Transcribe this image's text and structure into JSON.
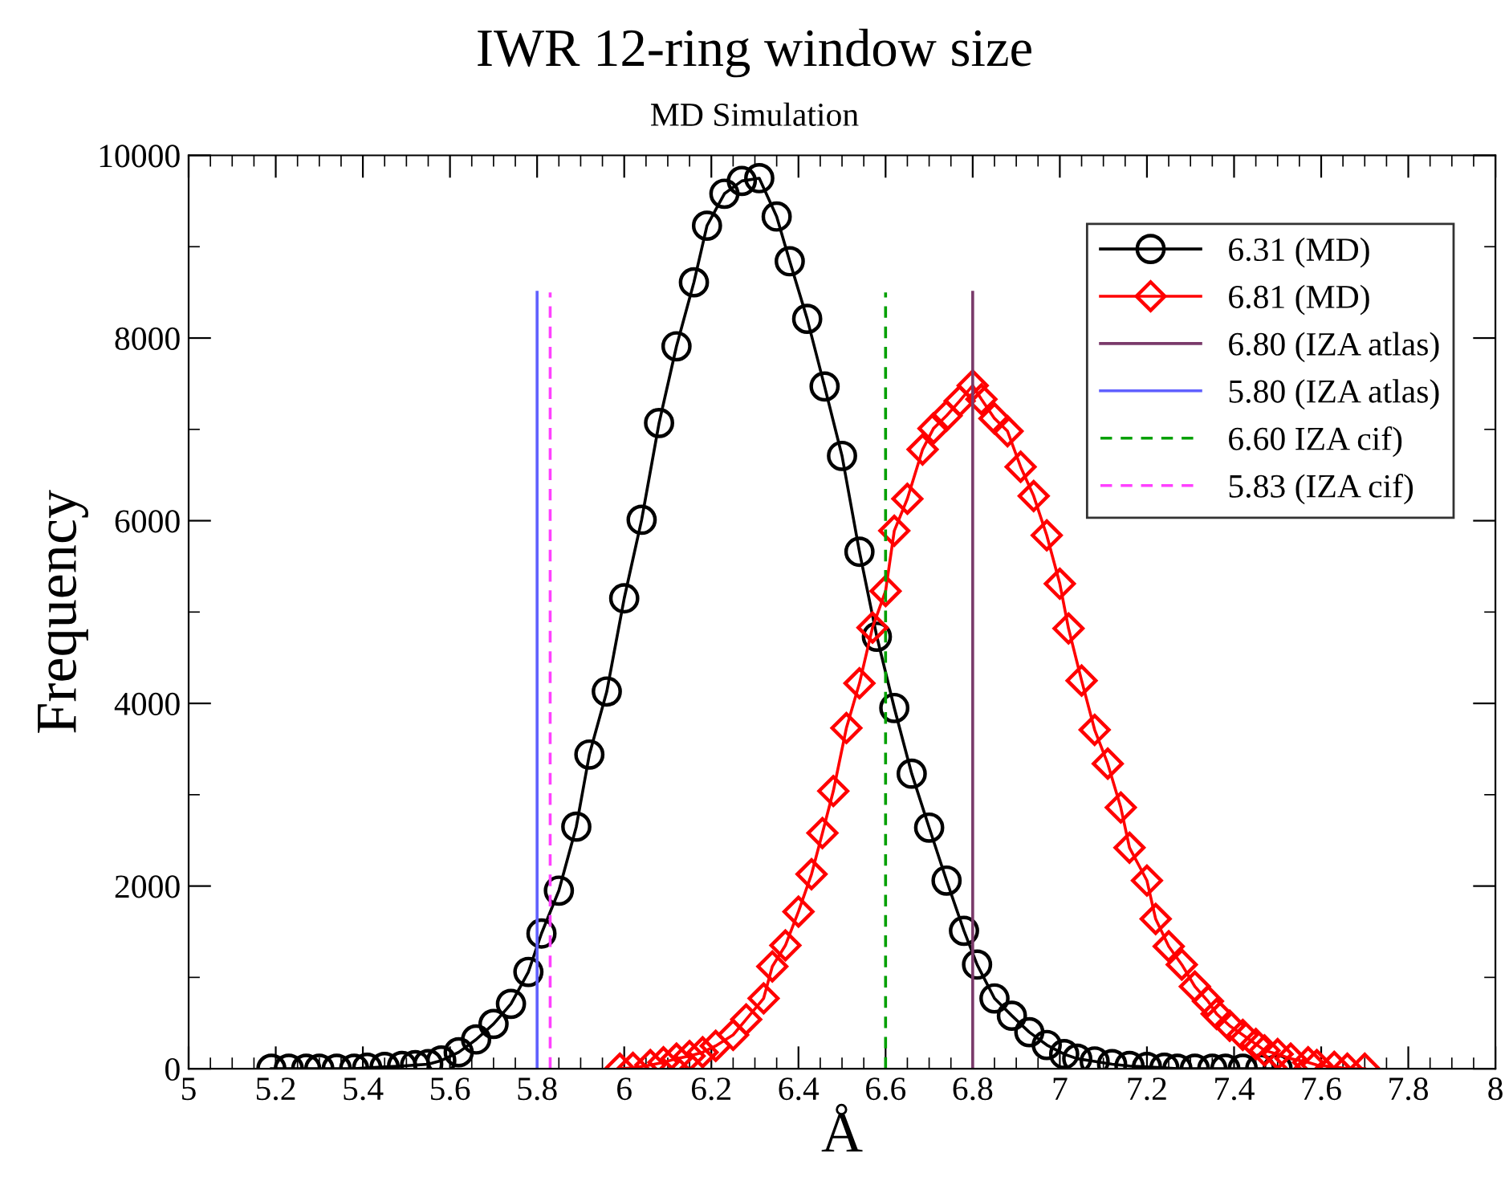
{
  "chart_data": {
    "type": "line",
    "title": "IWR 12-ring window size",
    "subtitle": "MD Simulation",
    "xlabel": "Å",
    "ylabel": "Frequency",
    "xlim": [
      5,
      8
    ],
    "xticks": [
      5,
      5.2,
      5.4,
      5.6,
      5.8,
      6,
      6.2,
      6.4,
      6.6,
      6.8,
      7,
      7.2,
      7.4,
      7.6,
      7.8,
      8
    ],
    "ylim": [
      0,
      10000
    ],
    "yticks": [
      0,
      2000,
      4000,
      6000,
      8000,
      10000
    ],
    "grid": false,
    "legend": "top right",
    "series": [
      {
        "name": "6.31 (MD)",
        "color": "#000000",
        "marker": "circle",
        "line_style": "solid",
        "x": [
          5.19,
          5.23,
          5.27,
          5.3,
          5.34,
          5.38,
          5.41,
          5.45,
          5.49,
          5.52,
          5.55,
          5.58,
          5.62,
          5.66,
          5.7,
          5.74,
          5.78,
          5.81,
          5.85,
          5.89,
          5.92,
          5.96,
          6.0,
          6.04,
          6.08,
          6.12,
          6.16,
          6.19,
          6.23,
          6.27,
          6.31,
          6.35,
          6.38,
          6.42,
          6.46,
          6.5,
          6.54,
          6.58,
          6.62,
          6.66,
          6.7,
          6.74,
          6.78,
          6.81,
          6.85,
          6.89,
          6.93,
          6.97,
          7.01,
          7.04,
          7.08,
          7.12,
          7.16,
          7.2,
          7.24,
          7.27,
          7.31,
          7.35,
          7.38,
          7.42,
          7.46,
          7.5
        ],
        "values": [
          0,
          0,
          0,
          0,
          0,
          0,
          10,
          20,
          30,
          40,
          50,
          90,
          180,
          320,
          490,
          710,
          1060,
          1480,
          1950,
          2650,
          3440,
          4130,
          5150,
          6010,
          7070,
          7910,
          8610,
          9230,
          9580,
          9720,
          9750,
          9330,
          8840,
          8210,
          7470,
          6710,
          5660,
          4730,
          3950,
          3230,
          2640,
          2060,
          1510,
          1140,
          770,
          580,
          400,
          260,
          160,
          110,
          80,
          50,
          30,
          20,
          10,
          0,
          0,
          0,
          0,
          0,
          0,
          0
        ]
      },
      {
        "name": "6.81 (MD)",
        "color": "#ff0000",
        "marker": "diamond",
        "line_style": "solid",
        "x": [
          5.99,
          6.02,
          6.06,
          6.09,
          6.12,
          6.15,
          6.18,
          6.21,
          6.25,
          6.28,
          6.32,
          6.34,
          6.37,
          6.4,
          6.43,
          6.455,
          6.48,
          6.51,
          6.54,
          6.57,
          6.6,
          6.62,
          6.65,
          6.685,
          6.71,
          6.74,
          6.77,
          6.8,
          6.82,
          6.85,
          6.88,
          6.91,
          6.94,
          6.97,
          7.0,
          7.02,
          7.05,
          7.08,
          7.11,
          7.14,
          7.16,
          7.2,
          7.22,
          7.25,
          7.28,
          7.31,
          7.34,
          7.36,
          7.39,
          7.42,
          7.45,
          7.47,
          7.5,
          7.53,
          7.57,
          7.59,
          7.63,
          7.66,
          7.7
        ],
        "values": [
          0,
          10,
          40,
          70,
          110,
          140,
          180,
          250,
          370,
          540,
          770,
          1120,
          1350,
          1720,
          2130,
          2580,
          3040,
          3730,
          4220,
          4830,
          5230,
          5890,
          6240,
          6780,
          7010,
          7150,
          7310,
          7480,
          7330,
          7120,
          6980,
          6590,
          6270,
          5840,
          5310,
          4820,
          4250,
          3710,
          3340,
          2860,
          2420,
          2060,
          1640,
          1340,
          1140,
          900,
          740,
          600,
          470,
          370,
          270,
          200,
          160,
          110,
          70,
          40,
          20,
          0,
          0
        ]
      },
      {
        "name": "6.80 (IZA atlas)",
        "color": "#7a3a6a",
        "marker": "none",
        "line_style": "solid",
        "x": [
          6.8,
          6.8
        ],
        "values": [
          0,
          8500
        ]
      },
      {
        "name": "5.80 (IZA atlas)",
        "color": "#6060ff",
        "marker": "none",
        "line_style": "solid",
        "x": [
          5.8,
          5.8
        ],
        "values": [
          0,
          8500
        ]
      },
      {
        "name": "6.60 IZA cif)",
        "color": "#00a000",
        "marker": "none",
        "line_style": "dashed",
        "x": [
          6.6,
          6.6
        ],
        "values": [
          0,
          8500
        ]
      },
      {
        "name": "5.83 (IZA cif)",
        "color": "#ff40ff",
        "marker": "none",
        "line_style": "dashed",
        "x": [
          5.83,
          5.83
        ],
        "values": [
          0,
          8500
        ]
      }
    ]
  }
}
